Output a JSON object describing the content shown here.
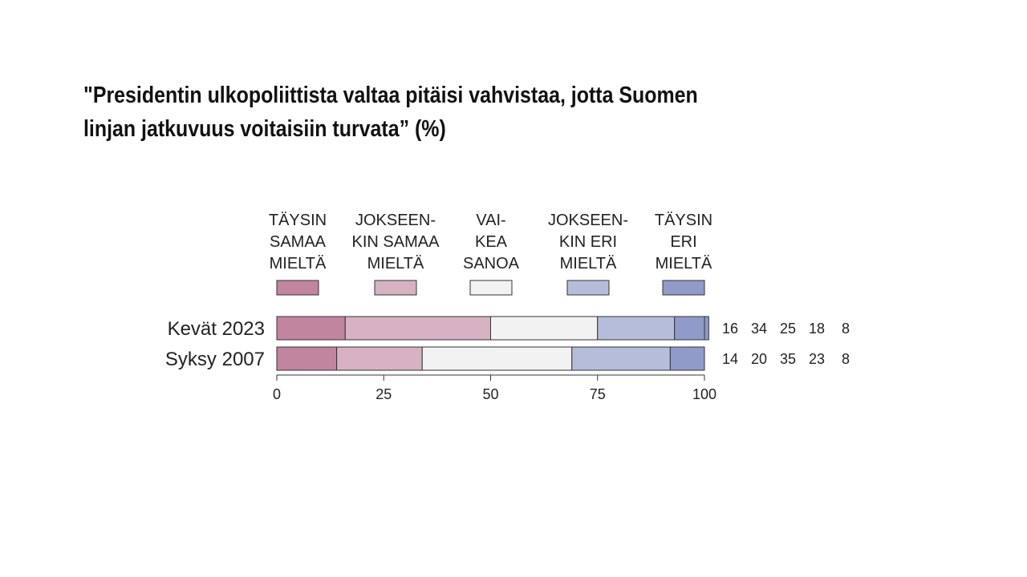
{
  "slide": {
    "title_line1": "\"Presidentin ulkopoliittista valtaa pitäisi vahvistaa, jotta Suomen",
    "title_line2": "linjan jatkuvuus voitaisiin turvata” (%)"
  },
  "chart_data": {
    "type": "bar",
    "orientation": "horizontal",
    "stacked": true,
    "title": "\"Presidentin ulkopoliittista valtaa pitäisi vahvistaa, jotta Suomen linjan jatkuvuus voitaisiin turvata” (%)",
    "categories": [
      "Kevät 2023",
      "Syksy 2007"
    ],
    "series": [
      {
        "name": [
          "TÄYSIN",
          "SAMAA",
          "MIELTÄ"
        ],
        "color": "#c1859f",
        "values": [
          16,
          14
        ]
      },
      {
        "name": [
          "JOKSEEN-",
          "KIN SAMAA",
          "MIELTÄ"
        ],
        "color": "#d6b2c3",
        "values": [
          34,
          20
        ]
      },
      {
        "name": [
          "VAI-",
          "KEA",
          "SANOA"
        ],
        "color": "#f2f2f2",
        "values": [
          25,
          35
        ]
      },
      {
        "name": [
          "JOKSEEN-",
          "KIN ERI",
          "MIELTÄ"
        ],
        "color": "#b6bddb",
        "values": [
          18,
          23
        ]
      },
      {
        "name": [
          "TÄYSIN",
          "ERI",
          "MIELTÄ"
        ],
        "color": "#919bc9",
        "values": [
          8,
          8
        ]
      }
    ],
    "xlim": [
      0,
      100
    ],
    "xticks": [
      0,
      25,
      50,
      75,
      100
    ],
    "legend_position": "top",
    "grid": false
  }
}
